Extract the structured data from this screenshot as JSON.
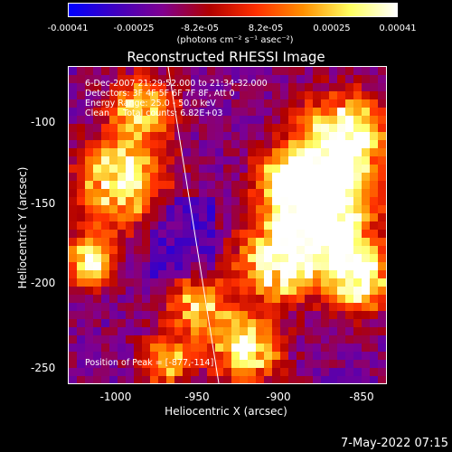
{
  "colorbar": {
    "ticks": [
      "-0.00041",
      "-0.00025",
      "-8.2e-05",
      "8.2e-05",
      "0.00025",
      "0.00041"
    ],
    "unit_label": "(photons cm⁻² s⁻¹ asec⁻²)"
  },
  "chart_data": {
    "type": "heatmap",
    "title": "Reconstructed RHESSI Image",
    "xlabel": "Heliocentric X (arcsec)",
    "ylabel": "Heliocentric Y (arcsec)",
    "xlim": [
      -1028,
      -838
    ],
    "ylim": [
      -262,
      -73
    ],
    "x_ticks": [
      "-1000",
      "-950",
      "-900",
      "-850"
    ],
    "y_ticks": [
      "-100",
      "-150",
      "-200",
      "-250"
    ],
    "info_lines": [
      "6-Dec-2007 21:29:52.000 to 21:34:32.000",
      "Detectors: 3F 4F 5F 6F 7F 8F, Att 0",
      "Energy Range: 25.0 - 50.0 keV",
      "Clean     Total counts: 6.82E+03"
    ],
    "peak_label": "Position of Peak = [-877,-114]",
    "peak": [
      -877,
      -114
    ],
    "colorscale": [
      "#0000ff",
      "#4000c0",
      "#800090",
      "#b00000",
      "#ff3000",
      "#ff9000",
      "#ffff60",
      "#ffffff"
    ],
    "value_range": [
      -0.00041,
      0.00041
    ]
  },
  "timestamp": "7-May-2022 07:15"
}
